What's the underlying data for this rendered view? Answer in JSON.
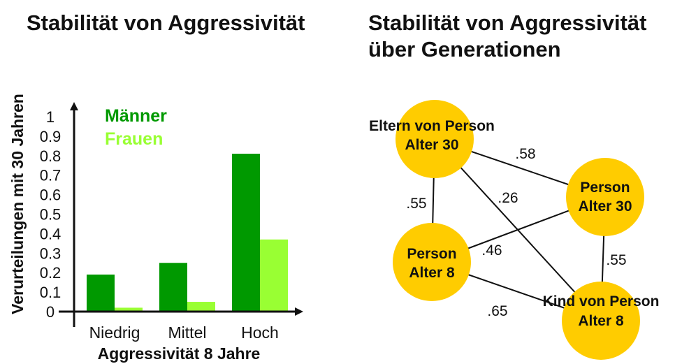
{
  "left_title": "Stabilität von Aggressivität",
  "right_title_line1": "Stabilität von Aggressivität",
  "right_title_line2": "über Generationen",
  "colors": {
    "maenner": "#009900",
    "frauen": "#99ff33",
    "node": "#ffcc00",
    "text": "#111111"
  },
  "chart_data": [
    {
      "type": "bar",
      "title": "Stabilität von Aggressivität",
      "xlabel": "Aggressivität 8 Jahre",
      "ylabel": "Verurteilungen mit 30 Jahren",
      "categories": [
        "Niedrig",
        "Mittel",
        "Hoch"
      ],
      "series": [
        {
          "name": "Männer",
          "values": [
            0.19,
            0.25,
            0.81
          ]
        },
        {
          "name": "Frauen",
          "values": [
            0.02,
            0.05,
            0.37
          ]
        }
      ],
      "ylim": [
        0,
        1
      ],
      "yticks": [
        "0",
        "0.1",
        "0.2",
        "0.3",
        "0.4",
        "0.5",
        "0.6",
        "0.7",
        "0.8",
        "0.9",
        "1"
      ],
      "legend_position": "top-left",
      "grid": false
    },
    {
      "type": "diagram",
      "title": "Stabilität von Aggressivität über Generationen",
      "nodes": [
        {
          "id": "eltern",
          "line1": "Eltern von Person",
          "line2": "Alter 30"
        },
        {
          "id": "person30",
          "line1": "Person",
          "line2": "Alter 30"
        },
        {
          "id": "person8",
          "line1": "Person",
          "line2": "Alter 8"
        },
        {
          "id": "kind8",
          "line1": "Kind von Person",
          "line2": "Alter 8"
        }
      ],
      "edges": [
        {
          "from": "eltern",
          "to": "person30",
          "label": ".58"
        },
        {
          "from": "eltern",
          "to": "person8",
          "label": ".55"
        },
        {
          "from": "eltern",
          "to": "kind8",
          "label": ".26"
        },
        {
          "from": "person30",
          "to": "person8",
          "label": ".46"
        },
        {
          "from": "person30",
          "to": "kind8",
          "label": ".55"
        },
        {
          "from": "person8",
          "to": "kind8",
          "label": ".65"
        }
      ]
    }
  ]
}
